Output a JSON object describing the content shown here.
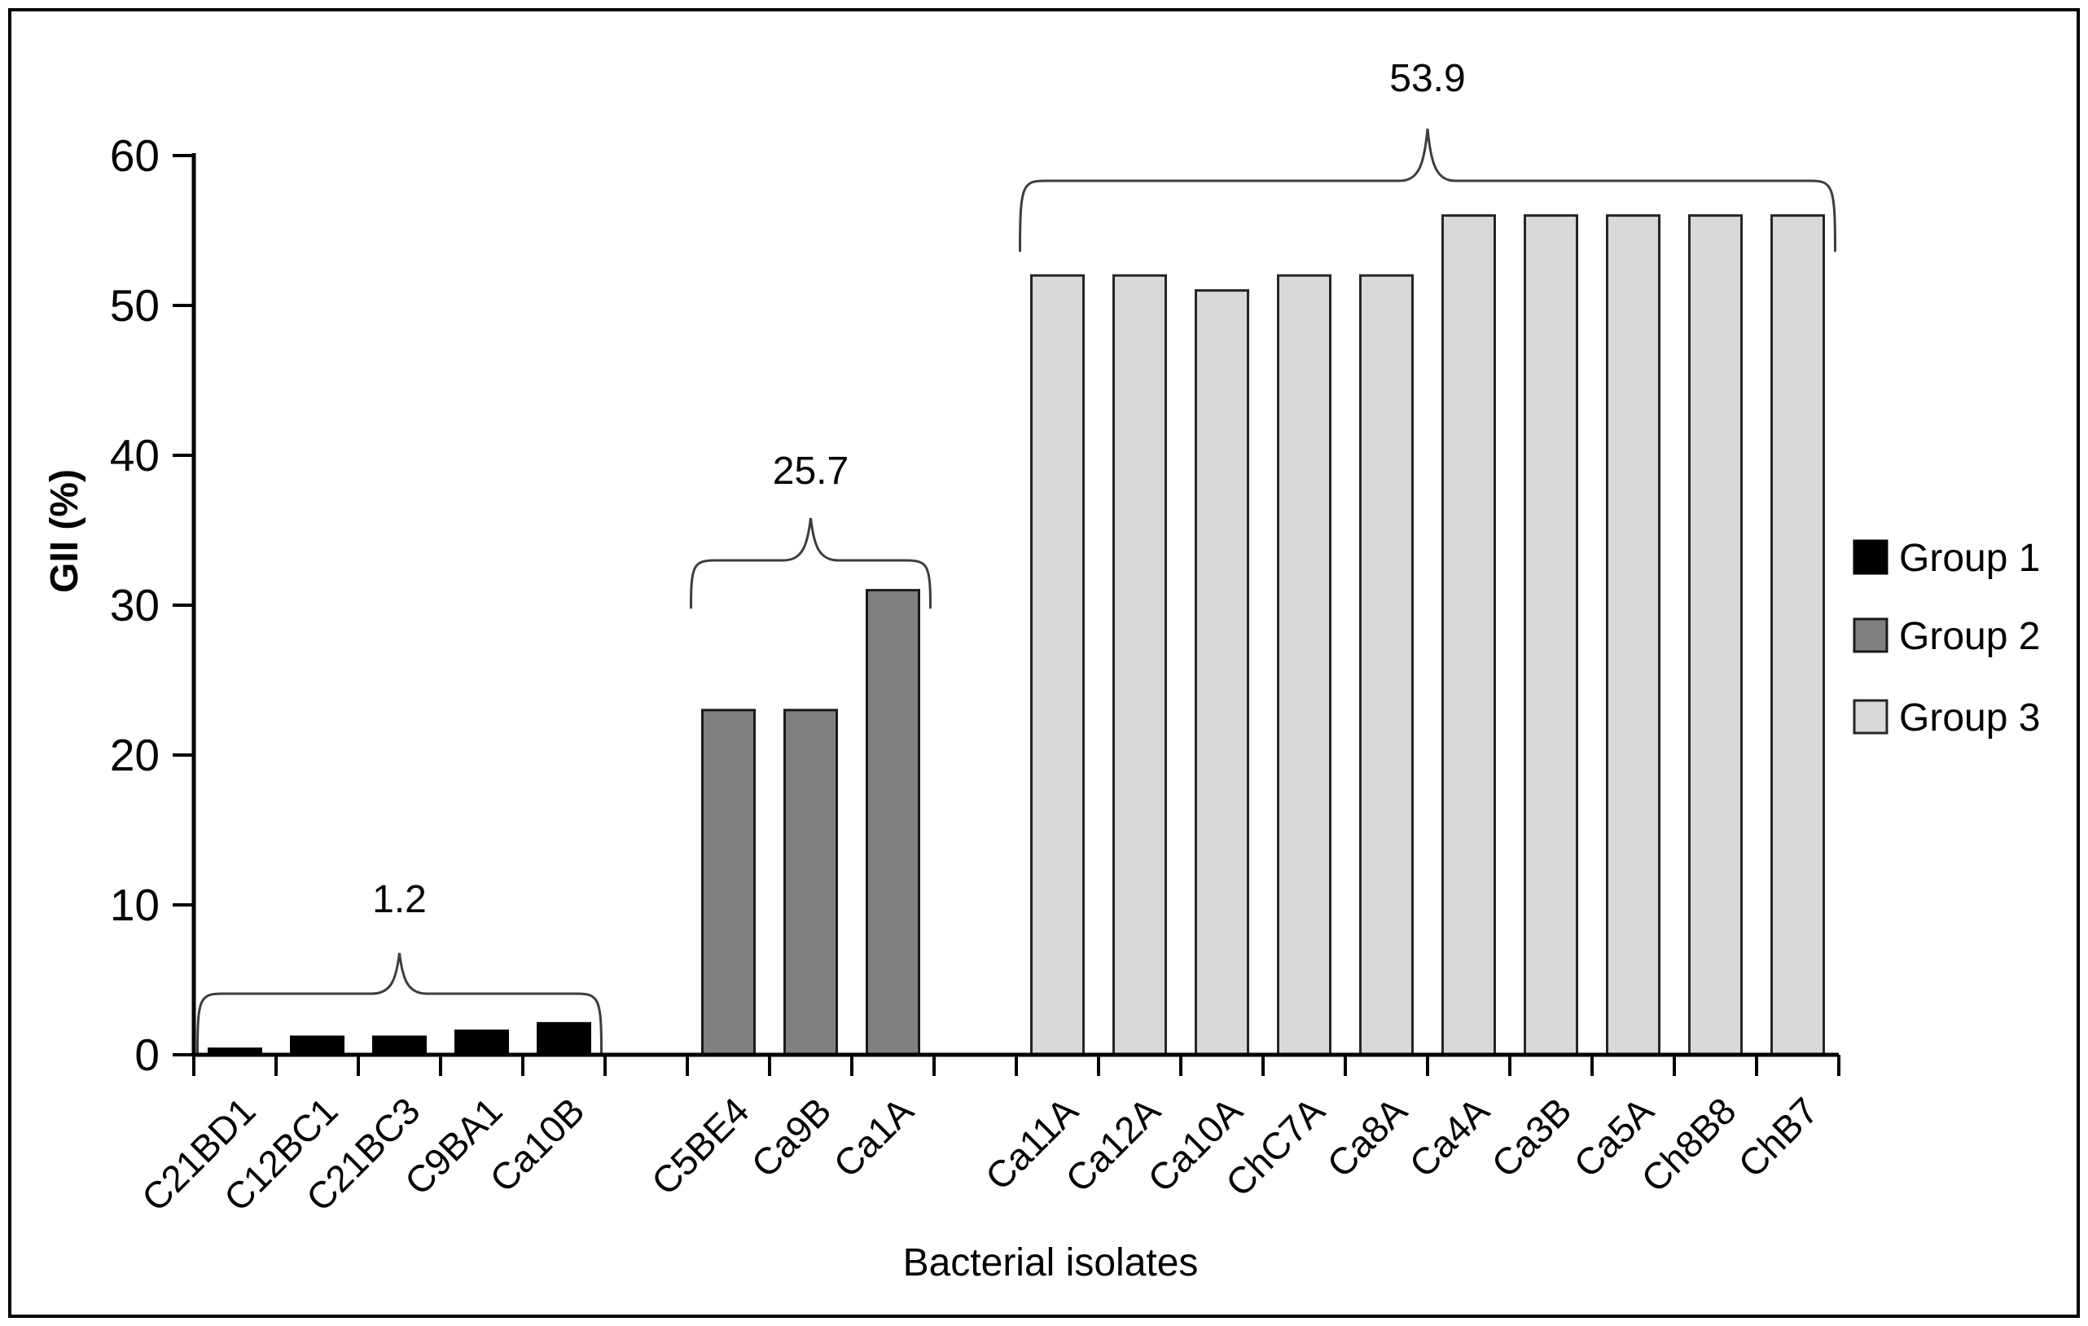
{
  "chart_data": {
    "type": "bar",
    "title": "",
    "xlabel": "Bacterial isolates",
    "ylabel": "GII (%)",
    "ylim": [
      0,
      60
    ],
    "yticks": [
      0,
      10,
      20,
      30,
      40,
      50,
      60
    ],
    "grid": false,
    "legend": {
      "position": "right",
      "entries": [
        "Group 1",
        "Group 2",
        "Group 3"
      ]
    },
    "groups": [
      {
        "name": "Group 1",
        "color": "#000000",
        "border": "#000000",
        "mean_label": "1.2",
        "categories": [
          "C21BD1",
          "C12BC1",
          "C21BC3",
          "C9BA1",
          "Ca10B"
        ],
        "values": [
          0.4,
          1.2,
          1.2,
          1.6,
          2.1
        ]
      },
      {
        "name": "Group 2",
        "color": "#808080",
        "border": "#1a1a1a",
        "mean_label": "25.7",
        "categories": [
          "C5BE4",
          "Ca9B",
          "Ca1A"
        ],
        "values": [
          23,
          23,
          31
        ]
      },
      {
        "name": "Group 3",
        "color": "#d9d9d9",
        "border": "#262626",
        "mean_label": "53.9",
        "categories": [
          "Ca11A",
          "Ca12A",
          "Ca10A",
          "ChC7A",
          "Ca8A",
          "Ca4A",
          "Ca3B",
          "Ca5A",
          "Ch8B8",
          "ChB7"
        ],
        "values": [
          52,
          52,
          51,
          52,
          52,
          56,
          56,
          56,
          56,
          56
        ]
      }
    ]
  }
}
